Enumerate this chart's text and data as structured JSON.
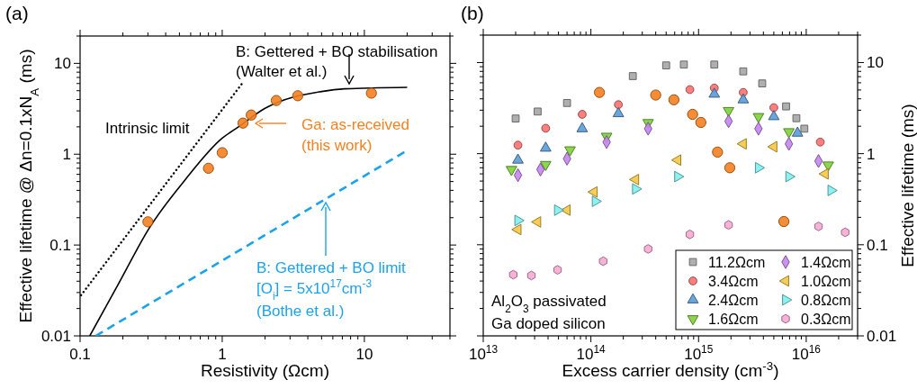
{
  "chart_data": [
    {
      "type": "line",
      "title": "(a)",
      "xlabel": "Resistivity (Ωcm)",
      "ylabel": "Effective lifetime @ Δn=0.1xN$_{A}$ (ms)",
      "log": "xy",
      "xlim": [
        0.1,
        40
      ],
      "ylim": [
        0.01,
        20
      ],
      "xticks": [
        0.1,
        {
          "value": 0.2,
          "label": null
        },
        {
          "value": 0.3,
          "label": null
        },
        {
          "value": 0.4,
          "label": null
        },
        {
          "value": 0.5,
          "label": null
        },
        {
          "value": 0.6,
          "label": null
        },
        {
          "value": 0.7,
          "label": null
        },
        {
          "value": 0.8,
          "label": null
        },
        {
          "value": 0.9,
          "label": null
        },
        1,
        {
          "value": 2,
          "label": null
        },
        {
          "value": 3,
          "label": null
        },
        {
          "value": 4,
          "label": null
        },
        {
          "value": 5,
          "label": null
        },
        {
          "value": 6,
          "label": null
        },
        {
          "value": 7,
          "label": null
        },
        {
          "value": 8,
          "label": null
        },
        {
          "value": 9,
          "label": null
        },
        10,
        {
          "value": 20,
          "label": null
        },
        {
          "value": 30,
          "label": null
        },
        {
          "value": 40,
          "label": null
        }
      ],
      "yticks": [
        0.01,
        {
          "value": 0.02,
          "label": null
        },
        {
          "value": 0.03,
          "label": null
        },
        {
          "value": 0.04,
          "label": null
        },
        {
          "value": 0.05,
          "label": null
        },
        {
          "value": 0.06,
          "label": null
        },
        {
          "value": 0.07,
          "label": null
        },
        {
          "value": 0.08,
          "label": null
        },
        {
          "value": 0.09,
          "label": null
        },
        0.1,
        {
          "value": 0.2,
          "label": null
        },
        {
          "value": 0.3,
          "label": null
        },
        {
          "value": 0.4,
          "label": null
        },
        {
          "value": 0.5,
          "label": null
        },
        {
          "value": 0.6,
          "label": null
        },
        {
          "value": 0.7,
          "label": null
        },
        {
          "value": 0.8,
          "label": null
        },
        {
          "value": 0.9,
          "label": null
        },
        1,
        {
          "value": 2,
          "label": null
        },
        {
          "value": 3,
          "label": null
        },
        {
          "value": 4,
          "label": null
        },
        {
          "value": 5,
          "label": null
        },
        {
          "value": 6,
          "label": null
        },
        {
          "value": 7,
          "label": null
        },
        {
          "value": 8,
          "label": null
        },
        {
          "value": 9,
          "label": null
        },
        10,
        {
          "value": 20,
          "label": null
        }
      ],
      "series": [
        {
          "color": "#000000",
          "line_style": "dotted",
          "x": [
            0.1015,
            1.39
          ],
          "values": [
            0.028,
            6.1
          ]
        },
        {
          "color": "#000000",
          "line_style": "solid",
          "x": [
            0.117,
            0.189,
            0.306,
            0.545,
            1.0,
            1.3,
            2.0,
            5.0,
            7.25,
            20
          ],
          "values": [
            0.01,
            0.039,
            0.153,
            0.516,
            1.5,
            2.0,
            3.2,
            4.9,
            5.25,
            5.45
          ]
        },
        {
          "color": "#1aa3ec",
          "line_style": "dashed",
          "x": [
            0.129,
            20
          ],
          "values": [
            0.01,
            1.1
          ]
        },
        {
          "type": "scatter",
          "color": "#f5801f",
          "marker": "circle",
          "x": [
            0.3,
            0.8,
            1.0,
            1.4,
            1.6,
            2.4,
            3.4,
            11.2
          ],
          "values": [
            0.18,
            0.7,
            1.04,
            2.2,
            2.7,
            3.9,
            4.4,
            4.7
          ]
        }
      ],
      "annotations": [
        "B: Gettered + BO stabilisation",
        "(Walter et al.)",
        "Intrinsic limit",
        "Ga: as-received",
        "(this work)",
        "B: Gettered + BO limit",
        "[O$_{i}$] = 5x10$^{17}$cm$^{-3}$",
        "(Bothe et al.)"
      ]
    },
    {
      "type": "scatter",
      "title": "(b)",
      "xlabel": "Excess carrier density (cm$^{-3}$)",
      "ylabel": "Effective lifetime (ms)",
      "log": "xy",
      "xlim": [
        10000000000000.0,
        3e+16
      ],
      "ylim": [
        0.01,
        20
      ],
      "legend": "bottom right",
      "xticks": [
        {
          "value": 10000000000000.0,
          "label": "10$^{13}$"
        },
        {
          "value": 20000000000000.0,
          "label": null
        },
        {
          "value": 30000000000000.0,
          "label": null
        },
        {
          "value": 40000000000000.0,
          "label": null
        },
        {
          "value": 50000000000000.0,
          "label": null
        },
        {
          "value": 60000000000000.0,
          "label": null
        },
        {
          "value": 70000000000000.0,
          "label": null
        },
        {
          "value": 80000000000000.0,
          "label": null
        },
        {
          "value": 90000000000000.0,
          "label": null
        },
        {
          "value": 100000000000000.0,
          "label": "10$^{14}$"
        },
        {
          "value": 200000000000000.0,
          "label": null
        },
        {
          "value": 300000000000000.0,
          "label": null
        },
        {
          "value": 400000000000000.0,
          "label": null
        },
        {
          "value": 500000000000000.0,
          "label": null
        },
        {
          "value": 600000000000000.0,
          "label": null
        },
        {
          "value": 700000000000000.0,
          "label": null
        },
        {
          "value": 800000000000000.0,
          "label": null
        },
        {
          "value": 900000000000000.0,
          "label": null
        },
        {
          "value": 1000000000000000.0,
          "label": "10$^{15}$"
        },
        {
          "value": 2000000000000000.0,
          "label": null
        },
        {
          "value": 3000000000000000.0,
          "label": null
        },
        {
          "value": 4000000000000000.0,
          "label": null
        },
        {
          "value": 5000000000000000.0,
          "label": null
        },
        {
          "value": 6000000000000000.0,
          "label": null
        },
        {
          "value": 7000000000000000.0,
          "label": null
        },
        {
          "value": 8000000000000000.0,
          "label": null
        },
        {
          "value": 9000000000000000.0,
          "label": null
        },
        {
          "value": 1e+16,
          "label": "10$^{16}$"
        },
        {
          "value": 2e+16,
          "label": null
        },
        {
          "value": 3e+16,
          "label": null
        }
      ],
      "yticks": [
        0.01,
        {
          "value": 0.02,
          "label": null
        },
        {
          "value": 0.03,
          "label": null
        },
        {
          "value": 0.04,
          "label": null
        },
        {
          "value": 0.05,
          "label": null
        },
        {
          "value": 0.06,
          "label": null
        },
        {
          "value": 0.07,
          "label": null
        },
        {
          "value": 0.08,
          "label": null
        },
        {
          "value": 0.09,
          "label": null
        },
        0.1,
        {
          "value": 0.2,
          "label": null
        },
        {
          "value": 0.3,
          "label": null
        },
        {
          "value": 0.4,
          "label": null
        },
        {
          "value": 0.5,
          "label": null
        },
        {
          "value": 0.6,
          "label": null
        },
        {
          "value": 0.7,
          "label": null
        },
        {
          "value": 0.8,
          "label": null
        },
        {
          "value": 0.9,
          "label": null
        },
        1,
        {
          "value": 2,
          "label": null
        },
        {
          "value": 3,
          "label": null
        },
        {
          "value": 4,
          "label": null
        },
        {
          "value": 5,
          "label": null
        },
        {
          "value": 6,
          "label": null
        },
        {
          "value": 7,
          "label": null
        },
        {
          "value": 8,
          "label": null
        },
        {
          "value": 9,
          "label": null
        },
        10,
        {
          "value": 20,
          "label": null
        }
      ],
      "series": [
        {
          "name": "11.2Ωcm",
          "color": "#a6a6a6",
          "marker": "square",
          "x": [
            20000000000000.0,
            32000000000000.0,
            60000000000000.0,
            245000000000000.0,
            500000000000000.0,
            730000000000000.0,
            1400000000000000.0,
            2600000000000000.0,
            3900000000000000.0,
            6500000000000000.0,
            8100000000000000.0,
            9600000000000000.0
          ],
          "values": [
            2.43,
            2.9,
            3.6,
            7.1,
            9.3,
            9.5,
            9.5,
            8.0,
            5.9,
            3.3,
            2.45,
            1.88
          ]
        },
        {
          "name": "3.4Ωcm",
          "color": "#ff7070",
          "marker": "circle",
          "x": [
            21000000000000.0,
            38000000000000.0,
            83000000000000.0,
            180000000000000.0,
            830000000000000.0,
            1400000000000000.0,
            2600000000000000.0,
            5000000000000000.0,
            1.35e+16
          ],
          "values": [
            1.24,
            1.9,
            2.7,
            3.45,
            5.05,
            5.25,
            4.7,
            3.2,
            1.34
          ]
        },
        {
          "name": "2.4Ωcm",
          "color": "#5b9bd5",
          "marker": "triangle",
          "x": [
            21000000000000.0,
            38000000000000.0,
            83000000000000.0,
            180000000000000.0,
            1400000000000000.0,
            2600000000000000.0,
            5000000000000000.0,
            8300000000000000.0
          ],
          "values": [
            0.85,
            1.15,
            1.88,
            2.75,
            4.5,
            3.9,
            2.55,
            1.68
          ]
        },
        {
          "name": "1.6Ωcm",
          "color": "#7fd13b",
          "marker": "triangle-down",
          "x": [
            18300000000000.0,
            38000000000000.0,
            64000000000000.0,
            140000000000000.0,
            340000000000000.0,
            1900000000000000.0,
            3600000000000000.0,
            6900000000000000.0,
            1.6e+16
          ],
          "values": [
            0.67,
            0.76,
            1.1,
            1.55,
            2.19,
            2.97,
            2.55,
            1.74,
            0.75
          ]
        },
        {
          "name": "1.4Ωcm",
          "color": "#c585f0",
          "marker": "diamond",
          "x": [
            21000000000000.0,
            34000000000000.0,
            60000000000000.0,
            140000000000000.0,
            340000000000000.0,
            1900000000000000.0,
            3600000000000000.0,
            6900000000000000.0,
            1.3e+16
          ],
          "values": [
            0.58,
            0.67,
            0.88,
            1.34,
            1.88,
            2.27,
            1.88,
            1.28,
            0.83
          ]
        },
        {
          "name": "1.0Ωcm",
          "color": "#f5c842",
          "marker": "triangle-left",
          "x": [
            21000000000000.0,
            32000000000000.0,
            60000000000000.0,
            107000000000000.0,
            260000000000000.0,
            640000000000000.0,
            2600000000000000.0,
            5000000000000000.0,
            1.5e+16
          ],
          "values": [
            0.147,
            0.178,
            0.24,
            0.38,
            0.52,
            0.85,
            1.28,
            1.19,
            0.6
          ]
        },
        {
          "name": "0.8Ωcm",
          "color": "#7ff0f0",
          "marker": "triangle-right",
          "x": [
            21000000000000.0,
            49000000000000.0,
            110000000000000.0,
            260000000000000.0,
            640000000000000.0,
            3600000000000000.0,
            6900000000000000.0,
            1.7e+16
          ],
          "values": [
            0.185,
            0.24,
            0.3,
            0.41,
            0.56,
            0.7,
            0.56,
            0.395
          ]
        },
        {
          "name": "0.3Ωcm",
          "color": "#f7a8d3",
          "x": [
            19000000000000.0,
            28000000000000.0,
            49000000000000.0,
            130000000000000.0,
            340000000000000.0,
            830000000000000.0,
            1900000000000000.0,
            1.3e+16,
            2.3e+16
          ],
          "values": [
            0.047,
            0.046,
            0.053,
            0.066,
            0.09,
            0.13,
            0.165,
            0.159,
            0.137
          ]
        },
        {
          "color": "#f5801f",
          "marker": "circle",
          "x": [
            120000000000000.0,
            400000000000000.0,
            590000000000000.0,
            880000000000000.0,
            1050000000000000.0,
            1500000000000000.0,
            1950000000000000.0,
            6200000000000000.0
          ],
          "values": [
            4.7,
            4.4,
            3.9,
            2.7,
            2.2,
            1.04,
            0.7,
            0.18
          ]
        }
      ],
      "annotations": [
        "Al$_{2}$O$_{3}$ passivated",
        "Ga doped silicon"
      ]
    }
  ]
}
